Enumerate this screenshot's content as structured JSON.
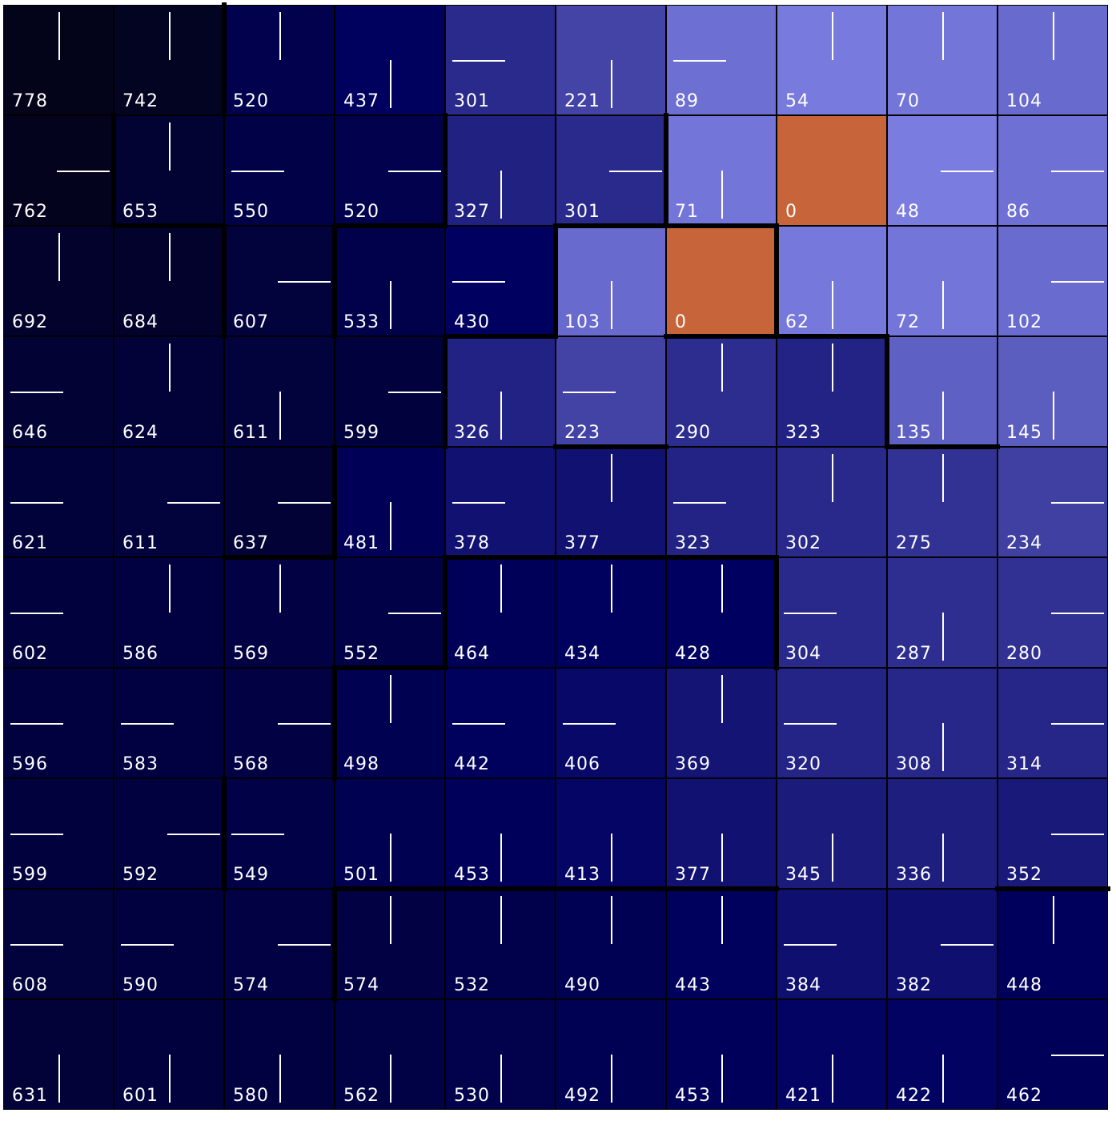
{
  "grid": {
    "rows": [
      [
        "778",
        "742",
        "520",
        "437",
        "301",
        "221",
        "89",
        "54",
        "70",
        "104"
      ],
      [
        "762",
        "653",
        "550",
        "520",
        "327",
        "301",
        "71",
        "0",
        "48",
        "86"
      ],
      [
        "692",
        "684",
        "607",
        "533",
        "430",
        "103",
        "0",
        "62",
        "72",
        "102"
      ],
      [
        "646",
        "624",
        "611",
        "599",
        "326",
        "223",
        "290",
        "323",
        "135",
        "145"
      ],
      [
        "621",
        "611",
        "637",
        "481",
        "378",
        "377",
        "323",
        "302",
        "275",
        "234"
      ],
      [
        "602",
        "586",
        "569",
        "552",
        "464",
        "434",
        "428",
        "304",
        "287",
        "280"
      ],
      [
        "596",
        "583",
        "568",
        "498",
        "442",
        "406",
        "369",
        "320",
        "308",
        "314"
      ],
      [
        "599",
        "592",
        "549",
        "501",
        "453",
        "413",
        "377",
        "345",
        "336",
        "352"
      ],
      [
        "608",
        "590",
        "574",
        "574",
        "532",
        "490",
        "443",
        "384",
        "382",
        "448"
      ],
      [
        "631",
        "601",
        "580",
        "562",
        "530",
        "492",
        "453",
        "421",
        "422",
        "462"
      ]
    ],
    "arrows": [
      [
        "up",
        "up",
        "up",
        "down",
        "left",
        "down",
        "left",
        "up",
        "up",
        "up"
      ],
      [
        "right",
        "up",
        "left",
        "right",
        "down",
        "right",
        "down",
        "none",
        "right",
        "right"
      ],
      [
        "up",
        "up",
        "right",
        "down",
        "left",
        "down",
        "none",
        "down",
        "down",
        "right"
      ],
      [
        "left",
        "up",
        "down",
        "right",
        "down",
        "left",
        "up",
        "up",
        "down",
        "down"
      ],
      [
        "left",
        "right",
        "right",
        "down",
        "left",
        "up",
        "left",
        "up",
        "up",
        "right"
      ],
      [
        "left",
        "up",
        "up",
        "right",
        "up",
        "up",
        "up",
        "left",
        "down",
        "right"
      ],
      [
        "left",
        "left",
        "right",
        "up",
        "left",
        "left",
        "up",
        "left",
        "down",
        "right"
      ],
      [
        "left",
        "right",
        "left",
        "down",
        "down",
        "down",
        "down",
        "down",
        "down",
        "right"
      ],
      [
        "left",
        "left",
        "right",
        "up",
        "up",
        "up",
        "up",
        "left",
        "right",
        "up"
      ],
      [
        "down",
        "down",
        "down",
        "down",
        "down",
        "down",
        "down",
        "down",
        "down",
        "right"
      ]
    ],
    "goal_color": "#c8643a",
    "low_color": "#8a8cf0",
    "high_color": "#03031a"
  }
}
